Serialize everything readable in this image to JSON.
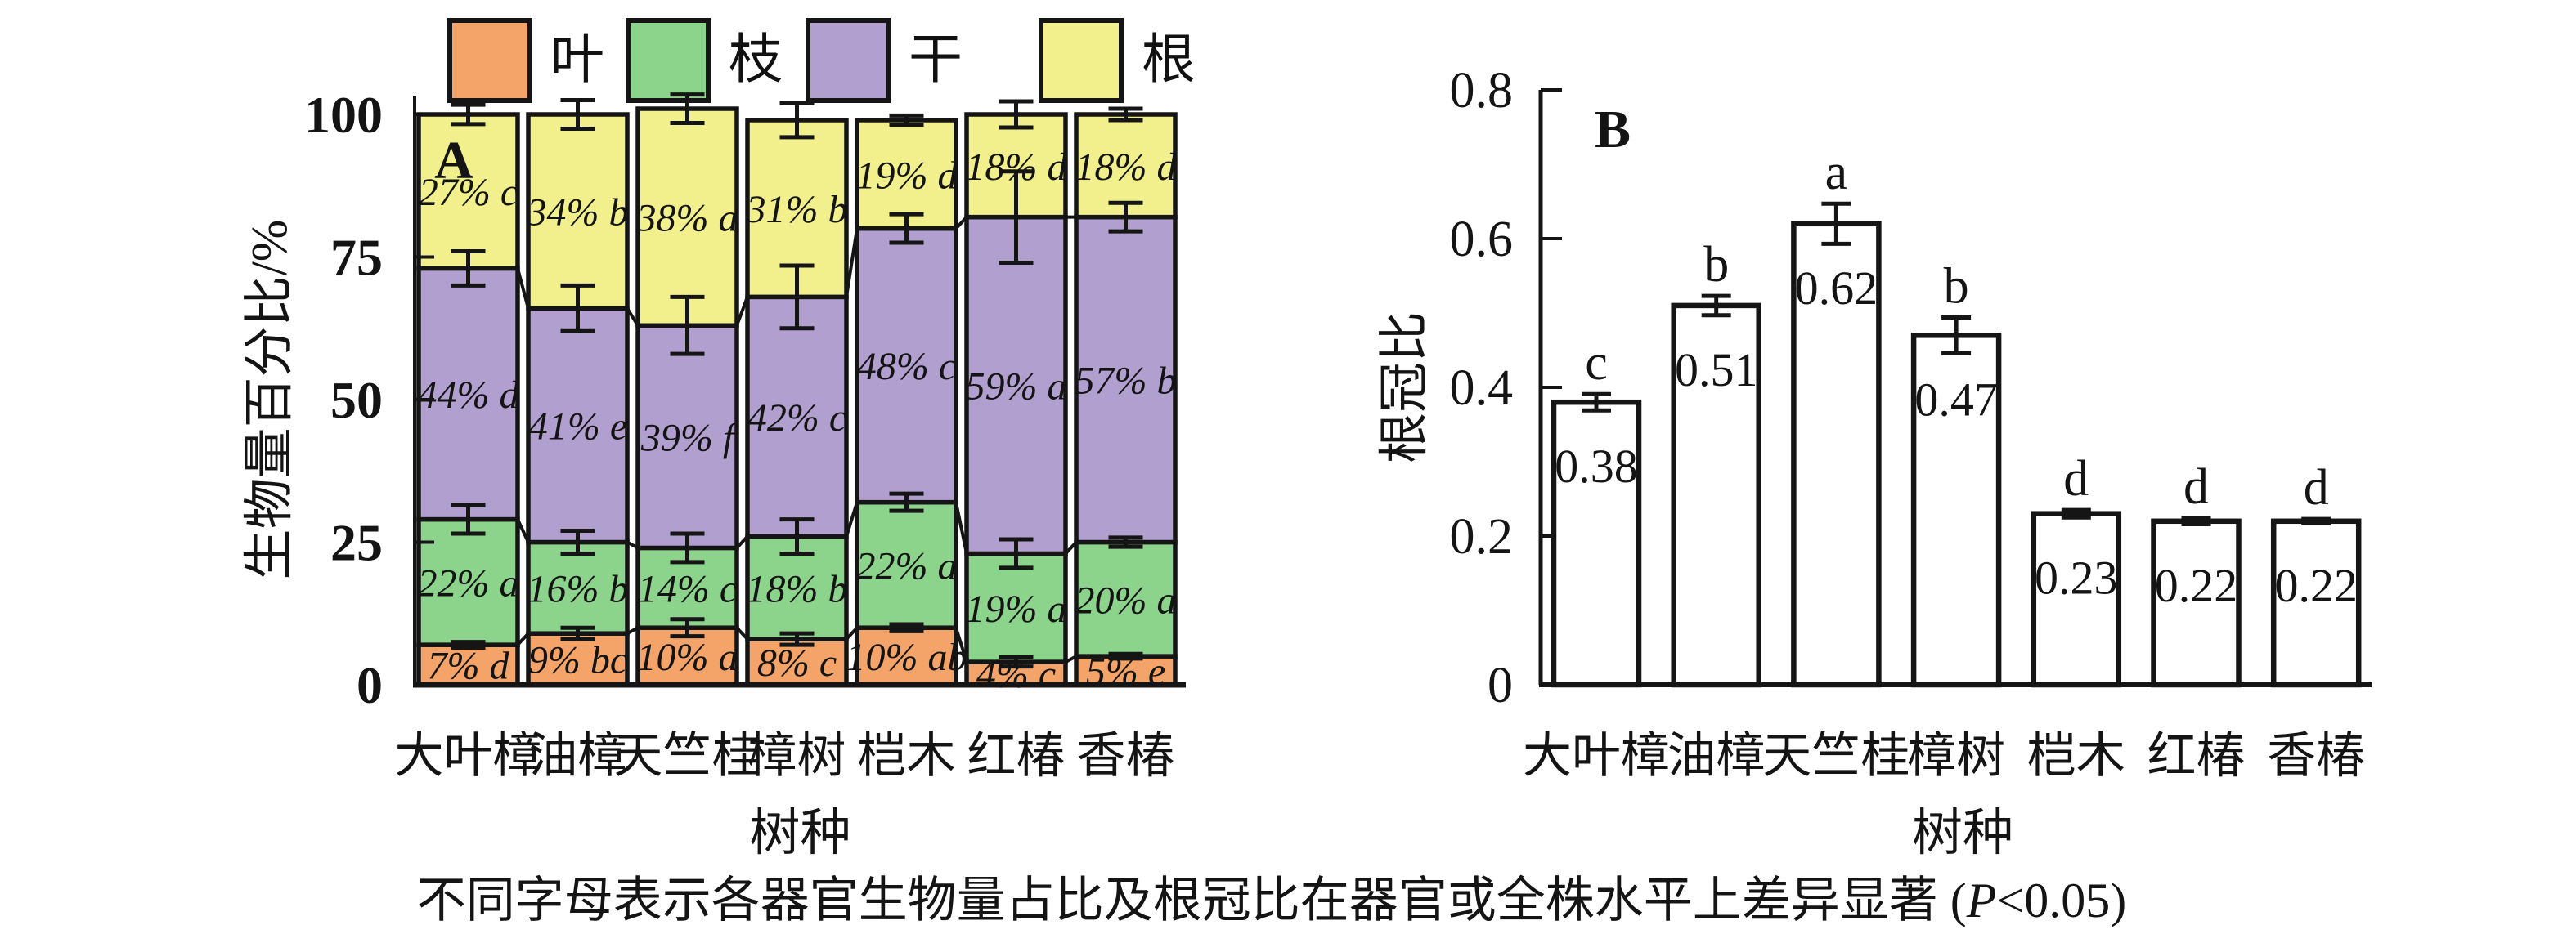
{
  "figure": {
    "caption": {
      "prefix": "不同字母表示各器官生物量占比及根冠比在器官或全株水平上差异显著 (",
      "p_symbol": "P",
      "suffix": "<0.05)"
    }
  },
  "legend": {
    "items": [
      {
        "label": "叶",
        "color": "#F4A468"
      },
      {
        "label": "枝",
        "color": "#8CD38C"
      },
      {
        "label": "干",
        "color": "#B1A0CF"
      },
      {
        "label": "根",
        "color": "#F1F08C"
      }
    ]
  },
  "colors": {
    "leaf": "#F4A468",
    "branch": "#8CD38C",
    "trunk": "#B1A0CF",
    "root": "#F1F08C",
    "stroke": "#151515",
    "bar_fill_panel_b": "#FFFFFF"
  },
  "chart_data": [
    {
      "type": "bar",
      "variant": "stacked",
      "panel_label": "A",
      "title": "",
      "ylabel": "生物量百分比/%",
      "xlabel": "树种",
      "ylim": [
        0,
        100
      ],
      "yticks": [
        0,
        25,
        50,
        75,
        100
      ],
      "grid": false,
      "legend_position": "top",
      "categories": [
        "大叶樟",
        "油樟",
        "天竺桂",
        "樟树",
        "桤木",
        "红椿",
        "香椿"
      ],
      "series": [
        {
          "name": "叶",
          "color": "#F4A468",
          "values": [
            7,
            9,
            10,
            8,
            10,
            4,
            5
          ],
          "letters": [
            "d",
            "bc",
            "a",
            "c",
            "ab",
            "c",
            "e"
          ],
          "errors": [
            0.5,
            1,
            1.5,
            1,
            0.6,
            0.8,
            0.4
          ]
        },
        {
          "name": "枝",
          "color": "#8CD38C",
          "values": [
            22,
            16,
            14,
            18,
            22,
            19,
            20
          ],
          "letters": [
            "a",
            "b",
            "c",
            "b",
            "a",
            "a",
            "a"
          ],
          "errors": [
            2.5,
            2,
            2.5,
            3,
            1.5,
            2.5,
            0.8
          ]
        },
        {
          "name": "干",
          "color": "#B1A0CF",
          "values": [
            44,
            41,
            39,
            42,
            48,
            59,
            57
          ],
          "letters": [
            "d",
            "e",
            "f",
            "c",
            "c",
            "a",
            "b"
          ],
          "errors": [
            3,
            4,
            5,
            5.5,
            2.5,
            8,
            2.5
          ]
        },
        {
          "name": "根",
          "color": "#F1F08C",
          "values": [
            27,
            34,
            38,
            31,
            19,
            18,
            18
          ],
          "letters": [
            "c",
            "b",
            "a",
            "b",
            "d",
            "d",
            "d"
          ],
          "errors": [
            1.7,
            2.5,
            2.5,
            3,
            0.8,
            2.3,
            1
          ]
        }
      ],
      "segment_label_format": "{value}% {letter}"
    },
    {
      "type": "bar",
      "variant": "simple",
      "panel_label": "B",
      "title": "",
      "ylabel": "根冠比",
      "xlabel": "树种",
      "ylim": [
        0,
        0.8
      ],
      "yticks": [
        0,
        0.2,
        0.4,
        0.6,
        0.8
      ],
      "grid": false,
      "categories": [
        "大叶樟",
        "油樟",
        "天竺桂",
        "樟树",
        "桤木",
        "红椿",
        "香椿"
      ],
      "values": [
        0.38,
        0.51,
        0.62,
        0.47,
        0.23,
        0.22,
        0.22
      ],
      "value_labels": [
        "0.38",
        "0.51",
        "0.62",
        "0.47",
        "0.23",
        "0.22",
        "0.22"
      ],
      "letters": [
        "c",
        "b",
        "a",
        "b",
        "d",
        "d",
        "d"
      ],
      "errors": [
        0.011,
        0.013,
        0.027,
        0.024,
        0.005,
        0.004,
        0.003
      ]
    }
  ]
}
